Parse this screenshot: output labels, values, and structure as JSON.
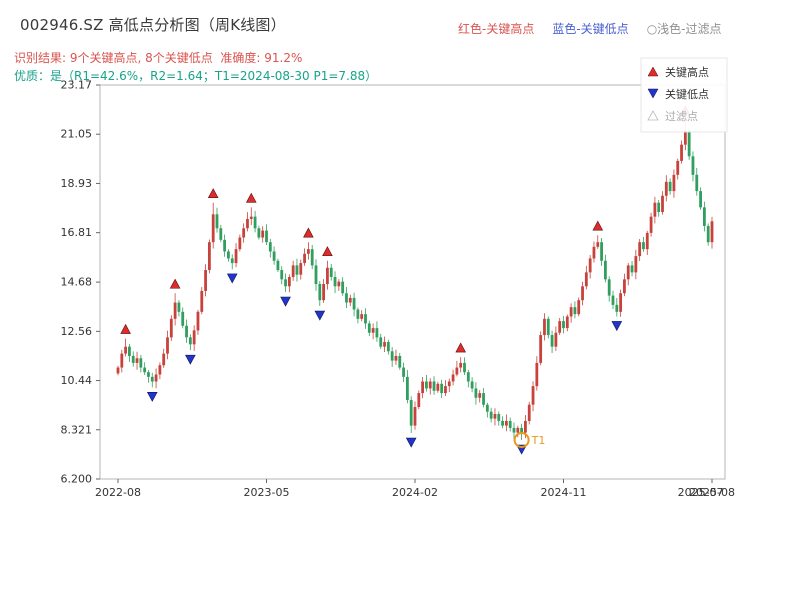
{
  "header": {
    "title": "002946.SZ 高低点分析图（周K线图）",
    "legend_top": [
      {
        "label": "红色-关键高点",
        "color": "#d9544f"
      },
      {
        "label": "蓝色-关键低点",
        "color": "#4a5fd0"
      },
      {
        "label": "○浅色-过滤点",
        "color": "#8f8f8f"
      }
    ],
    "result_line": "识别结果: 9个关键高点, 8个关键低点  准确度: 91.2%",
    "result_color": "#d9544f",
    "quality_line": "优质：是（R1=42.6%，R2=1.64；T1=2024-08-30 P1=7.88）",
    "quality_color": "#18a38c"
  },
  "chart_data": {
    "type": "candlestick",
    "title": "002946.SZ 高低点分析图（周K线图）",
    "xlabel": "",
    "ylabel": "",
    "ylim": [
      6.2,
      23.17
    ],
    "y_ticks": [
      "23.17",
      "21.05",
      "18.93",
      "16.81",
      "14.68",
      "12.56",
      "10.44",
      "8.321",
      "6.200"
    ],
    "x_ticks": [
      {
        "label": "2022-08",
        "week": 0
      },
      {
        "label": "2023-05",
        "week": 39
      },
      {
        "label": "2024-02",
        "week": 78
      },
      {
        "label": "2024-11",
        "week": 117
      },
      {
        "label": "2025-08",
        "week": 156
      }
    ],
    "x_extra_tick": {
      "label": "2025-07",
      "week": 153
    },
    "legend": [
      {
        "name": "关键高点",
        "marker": "triangle-up",
        "color": "#de2b2b",
        "text_color": "#333333"
      },
      {
        "name": "关键低点",
        "marker": "triangle-down",
        "color": "#2334c8",
        "text_color": "#333333"
      },
      {
        "name": "过滤点",
        "marker": "triangle-up-open",
        "color": "#cccccc",
        "text_color": "#aaaaaa"
      }
    ],
    "weekly_closes": [
      11.0,
      11.6,
      11.9,
      11.5,
      11.2,
      11.4,
      11.0,
      10.8,
      10.6,
      10.4,
      10.7,
      11.1,
      11.6,
      12.3,
      13.1,
      13.8,
      13.4,
      12.8,
      12.3,
      12.0,
      12.6,
      13.4,
      14.3,
      15.2,
      16.4,
      17.6,
      17.0,
      16.5,
      16.0,
      15.7,
      15.5,
      16.1,
      16.6,
      17.0,
      17.4,
      17.5,
      17.0,
      16.6,
      16.9,
      16.4,
      16.0,
      15.6,
      15.2,
      14.8,
      14.5,
      14.9,
      15.4,
      15.0,
      15.5,
      15.9,
      16.1,
      15.4,
      14.6,
      13.9,
      14.6,
      15.3,
      14.9,
      14.5,
      14.7,
      14.2,
      13.8,
      14.0,
      13.5,
      13.1,
      13.3,
      12.9,
      12.5,
      12.7,
      12.3,
      11.9,
      12.1,
      11.7,
      11.3,
      11.5,
      11.0,
      10.6,
      9.6,
      8.5,
      9.3,
      9.9,
      10.4,
      10.1,
      10.4,
      10.0,
      10.3,
      9.9,
      10.2,
      10.4,
      10.7,
      11.0,
      11.2,
      10.8,
      10.4,
      10.1,
      9.7,
      9.9,
      9.4,
      9.1,
      8.8,
      9.0,
      8.7,
      8.5,
      8.7,
      8.4,
      8.2,
      8.4,
      8.2,
      8.7,
      9.4,
      10.2,
      11.2,
      12.4,
      13.1,
      12.4,
      11.9,
      12.5,
      13.0,
      12.7,
      13.2,
      13.6,
      13.3,
      13.9,
      14.5,
      15.1,
      15.7,
      16.2,
      16.4,
      15.6,
      14.8,
      14.1,
      13.7,
      13.4,
      14.2,
      14.8,
      15.4,
      15.1,
      15.8,
      16.4,
      16.1,
      16.8,
      17.5,
      18.1,
      17.7,
      18.4,
      19.0,
      18.6,
      19.3,
      19.9,
      20.6,
      21.2,
      20.1,
      19.3,
      18.6,
      17.9,
      17.1,
      16.4,
      17.3
    ],
    "key_highs": [
      {
        "week": 2,
        "price": 12.25
      },
      {
        "week": 15,
        "price": 14.2
      },
      {
        "week": 25,
        "price": 18.1
      },
      {
        "week": 35,
        "price": 17.9
      },
      {
        "week": 50,
        "price": 16.4
      },
      {
        "week": 55,
        "price": 15.6
      },
      {
        "week": 90,
        "price": 11.45
      },
      {
        "week": 126,
        "price": 16.7
      },
      {
        "week": 149,
        "price": 21.66
      }
    ],
    "key_lows": [
      {
        "week": 9,
        "price": 10.15
      },
      {
        "week": 19,
        "price": 11.75
      },
      {
        "week": 30,
        "price": 15.25
      },
      {
        "week": 44,
        "price": 14.25
      },
      {
        "week": 53,
        "price": 13.65
      },
      {
        "week": 77,
        "price": 8.18
      },
      {
        "week": 106,
        "price": 7.88
      },
      {
        "week": 131,
        "price": 13.2
      }
    ],
    "t1": {
      "week": 106,
      "label": "T1",
      "date": "2024-08-30",
      "price": 7.88
    },
    "counts": {
      "key_highs": 9,
      "key_lows": 8,
      "accuracy": "91.2%"
    },
    "colors": {
      "up": "#c8423c",
      "down": "#2f9e5e",
      "key_high": "#de2b2b",
      "key_low": "#2334c8",
      "t1": "#e8981e"
    }
  }
}
